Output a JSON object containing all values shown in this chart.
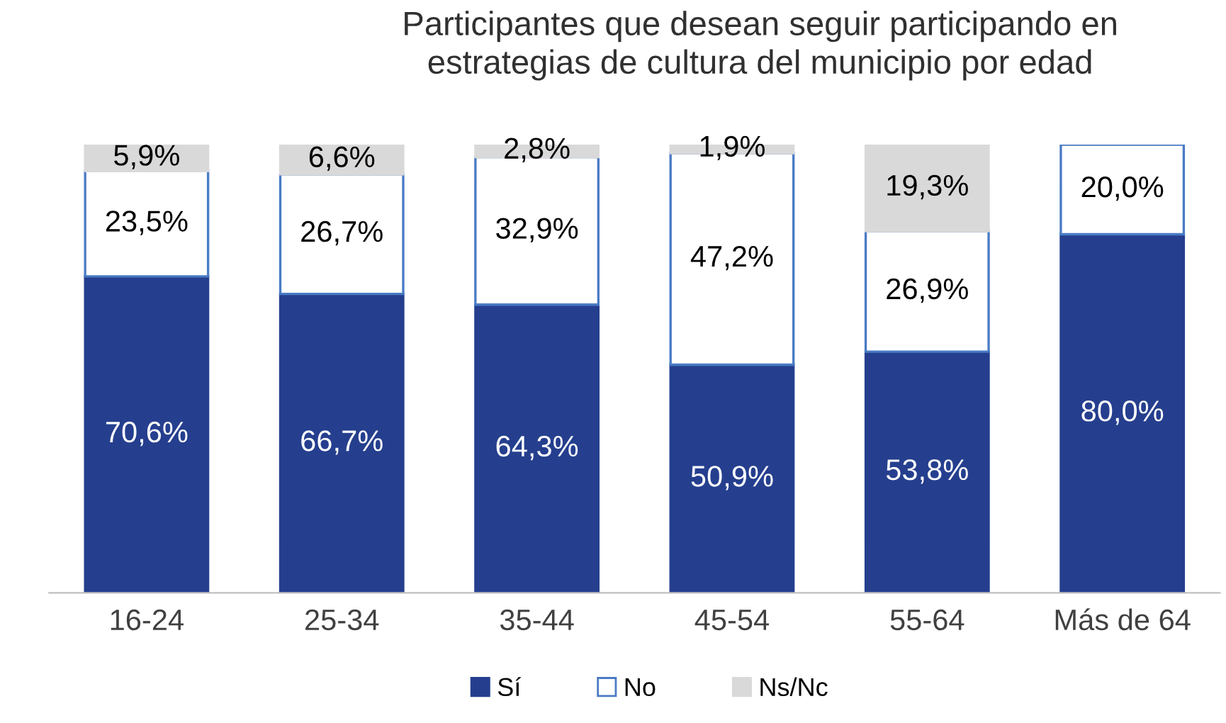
{
  "chart_data": {
    "type": "bar",
    "stacked": true,
    "title": "Participantes que desean seguir participando en\nestrategias de cultura del municipio por edad",
    "categories": [
      "16-24",
      "25-34",
      "35-44",
      "45-54",
      "55-64",
      "Más de 64"
    ],
    "series": [
      {
        "name": "Sí",
        "color": "#253f8e",
        "values": [
          70.6,
          66.7,
          64.3,
          50.9,
          53.8,
          80.0
        ],
        "value_labels": [
          "70,6%",
          "66,7%",
          "64,3%",
          "50,9%",
          "53,8%",
          "80,0%"
        ]
      },
      {
        "name": "No",
        "color": "#ffffff",
        "values": [
          23.5,
          26.7,
          32.9,
          47.2,
          26.9,
          20.0
        ],
        "value_labels": [
          "23,5%",
          "26,7%",
          "32,9%",
          "47,2%",
          "26,9%",
          "20,0%"
        ]
      },
      {
        "name": "Ns/Nc",
        "color": "#d9d9d9",
        "values": [
          5.9,
          6.6,
          2.8,
          1.9,
          19.3,
          null
        ],
        "value_labels": [
          "5,9%",
          "6,6%",
          "2,8%",
          "1,9%",
          "19,3%",
          null
        ]
      }
    ],
    "legend": "bottom",
    "grid": false
  }
}
